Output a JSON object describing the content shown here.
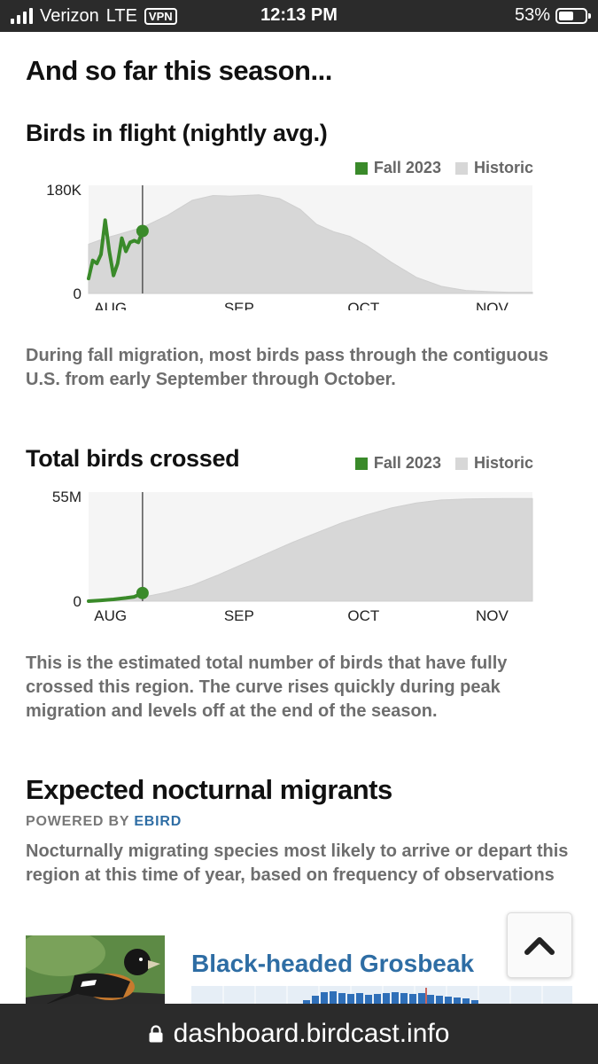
{
  "status_bar": {
    "carrier": "Verizon",
    "network": "LTE",
    "vpn": "VPN",
    "time": "12:13 PM",
    "battery": "53%"
  },
  "season": {
    "heading": "And so far this season..."
  },
  "flight_chart": {
    "title": "Birds in flight (nightly avg.)",
    "legend": {
      "current": "Fall 2023",
      "historic": "Historic"
    },
    "description": "During fall migration, most birds pass through the contiguous U.S. from early September through October."
  },
  "crossed_chart": {
    "title": "Total birds crossed",
    "legend": {
      "current": "Fall 2023",
      "historic": "Historic"
    },
    "description": "This is the estimated total number of birds that have fully crossed this region. The curve rises quickly during peak migration and levels off at the end of the season."
  },
  "migrants": {
    "heading": "Expected nocturnal migrants",
    "powered_by": "POWERED BY",
    "powered_link": "EBIRD",
    "description": "Nocturnally migrating species most likely to arrive or depart this region at this time of year, based on frequency of observations",
    "species": [
      {
        "name": "Black-headed Grosbeak"
      }
    ]
  },
  "scroll_top_icon": "chevron-up-icon",
  "url_bar": {
    "url": "dashboard.birdcast.info",
    "icon": "lock-icon"
  },
  "colors": {
    "current": "#3a8a2a",
    "historic": "#d7d7d7",
    "plot_bg": "#f5f5f5",
    "link": "#2e6da4"
  },
  "chart_data": [
    {
      "type": "area",
      "x_unit": "days since Aug 1",
      "x_ticks": [
        {
          "label": "AUG",
          "x": 0
        },
        {
          "label": "SEP",
          "x": 31
        },
        {
          "label": "OCT",
          "x": 61
        },
        {
          "label": "NOV",
          "x": 92
        }
      ],
      "xlim": [
        -1,
        106
      ],
      "ylim": [
        0,
        180000
      ],
      "y_tick_labels": [
        "0",
        "180K"
      ],
      "today_x": 12,
      "series": [
        {
          "name": "Historic",
          "x": [
            -1,
            3,
            8,
            12,
            18,
            24,
            29,
            33,
            40,
            45,
            50,
            54,
            58,
            62,
            66,
            72,
            78,
            84,
            90,
            96,
            100,
            106
          ],
          "values": [
            82000,
            92000,
            102000,
            110000,
            130000,
            155000,
            163000,
            162000,
            164000,
            158000,
            140000,
            115000,
            103000,
            95000,
            80000,
            52000,
            27000,
            12000,
            5000,
            3000,
            2000,
            2000
          ]
        },
        {
          "name": "Fall 2023",
          "x": [
            -1,
            0,
            1,
            2,
            3,
            4,
            5,
            6,
            7,
            8,
            9,
            10,
            11,
            12
          ],
          "values": [
            25000,
            55000,
            50000,
            65000,
            122000,
            70000,
            30000,
            50000,
            92000,
            70000,
            85000,
            88000,
            85000,
            104000
          ]
        }
      ]
    },
    {
      "type": "area",
      "x_unit": "days since Aug 1",
      "x_ticks": [
        {
          "label": "AUG",
          "x": 0
        },
        {
          "label": "SEP",
          "x": 31
        },
        {
          "label": "OCT",
          "x": 61
        },
        {
          "label": "NOV",
          "x": 92
        }
      ],
      "xlim": [
        -1,
        106
      ],
      "ylim": [
        0,
        55000000
      ],
      "y_tick_labels": [
        "0",
        "55M"
      ],
      "today_x": 12,
      "series": [
        {
          "name": "Historic",
          "x": [
            -1,
            6,
            12,
            18,
            24,
            30,
            36,
            42,
            48,
            54,
            60,
            66,
            72,
            78,
            84,
            90,
            96,
            100,
            106
          ],
          "values": [
            0,
            500000,
            2000000,
            4500000,
            8000000,
            13000000,
            18500000,
            24000000,
            29500000,
            34500000,
            39500000,
            43500000,
            47000000,
            49500000,
            51000000,
            51500000,
            51700000,
            51800000,
            51800000
          ]
        },
        {
          "name": "Fall 2023",
          "x": [
            -1,
            2,
            5,
            8,
            10,
            12
          ],
          "values": [
            0,
            400000,
            900000,
            1600000,
            2200000,
            4100000
          ]
        }
      ]
    }
  ]
}
